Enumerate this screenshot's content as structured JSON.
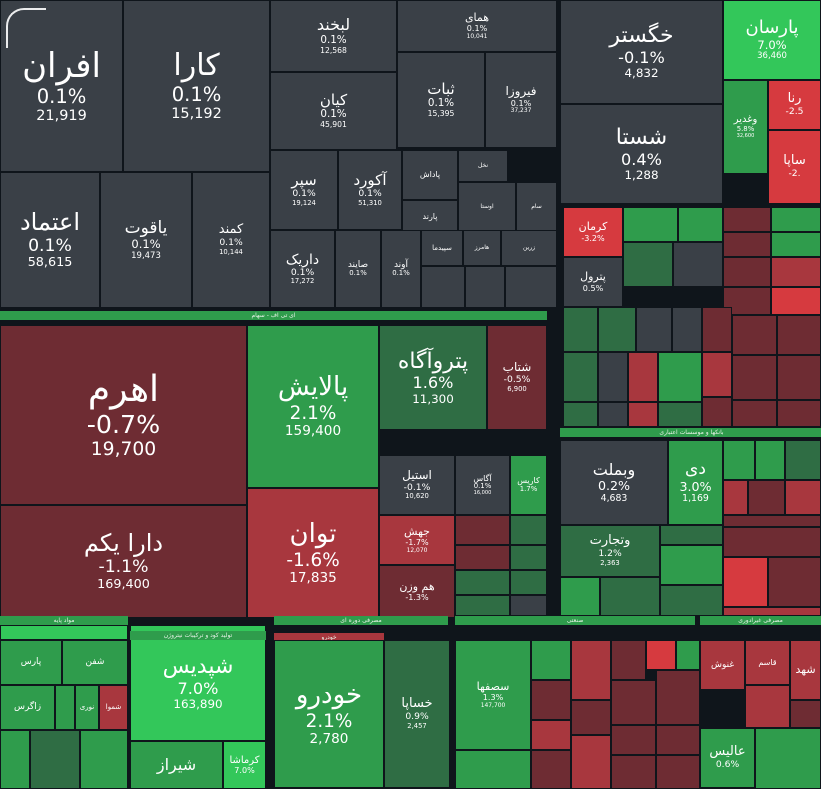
{
  "colors": {
    "neutral": "#3a4047",
    "dark_red": "#6e2c33",
    "red": "#a8373e",
    "bright_red": "#d63a3f",
    "dark_green": "#2f6d44",
    "green": "#2f9c4c",
    "bright_green": "#33c75a",
    "background": "#0f151b"
  },
  "sectors": [
    {
      "label": "ای تی اف - سهام"
    },
    {
      "label": "بانکها و موسسات اعتباری"
    },
    {
      "label": "مواد پایه"
    },
    {
      "label": "تولید کود و ترکیبات نیتروژن"
    },
    {
      "label": "مصرفی دوره ای"
    },
    {
      "label": "خودرو"
    },
    {
      "label": "صنعتی"
    },
    {
      "label": "مصرفی غیرادوری"
    }
  ],
  "chart_data": {
    "type": "treemap",
    "tiles": [
      {
        "name": "افران",
        "change": "0.1%",
        "value": "21,919",
        "color": "neutral"
      },
      {
        "name": "کارا",
        "change": "0.1%",
        "value": "15,192",
        "color": "neutral"
      },
      {
        "name": "لبخند",
        "change": "0.1%",
        "value": "12,568",
        "color": "neutral"
      },
      {
        "name": "همای",
        "change": "0.1%",
        "value": "10,041",
        "color": "neutral"
      },
      {
        "name": "کیان",
        "change": "0.1%",
        "value": "45,901",
        "color": "neutral"
      },
      {
        "name": "ثبات",
        "change": "0.1%",
        "value": "15,395",
        "color": "neutral"
      },
      {
        "name": "فیروزا",
        "change": "0.1%",
        "value": "37,237",
        "color": "neutral"
      },
      {
        "name": "اعتماد",
        "change": "0.1%",
        "value": "58,615",
        "color": "neutral"
      },
      {
        "name": "یاقوت",
        "change": "0.1%",
        "value": "19,473",
        "color": "neutral"
      },
      {
        "name": "کمند",
        "change": "0.1%",
        "value": "10,144",
        "color": "neutral"
      },
      {
        "name": "سپر",
        "change": "0.1%",
        "value": "19,124",
        "color": "neutral"
      },
      {
        "name": "آکورد",
        "change": "0.1%",
        "value": "51,310",
        "color": "neutral"
      },
      {
        "name": "پاداش",
        "change": "",
        "value": "",
        "color": "neutral"
      },
      {
        "name": "نخل",
        "change": "",
        "value": "",
        "color": "neutral"
      },
      {
        "name": "پارند",
        "change": "",
        "value": "",
        "color": "neutral"
      },
      {
        "name": "اوستا",
        "change": "",
        "value": "",
        "color": "neutral"
      },
      {
        "name": "سام",
        "change": "",
        "value": "",
        "color": "neutral"
      },
      {
        "name": "داریک",
        "change": "0.1%",
        "value": "17,272",
        "color": "neutral"
      },
      {
        "name": "صایند",
        "change": "0.1%",
        "value": "",
        "color": "neutral"
      },
      {
        "name": "آوند",
        "change": "0.1%",
        "value": "",
        "color": "neutral"
      },
      {
        "name": "سپیدما",
        "change": "",
        "value": "",
        "color": "neutral"
      },
      {
        "name": "هامرز",
        "change": "",
        "value": "",
        "color": "neutral"
      },
      {
        "name": "زرین",
        "change": "",
        "value": "",
        "color": "neutral"
      },
      {
        "name": "خگستر",
        "change": "-0.1%",
        "value": "4,832",
        "color": "neutral"
      },
      {
        "name": "شستا",
        "change": "0.4%",
        "value": "1,288",
        "color": "neutral"
      },
      {
        "name": "پارسان",
        "change": "7.0%",
        "value": "36,460",
        "color": "bright_green"
      },
      {
        "name": "رنا",
        "change": "-2.5",
        "value": "",
        "color": "bright_red"
      },
      {
        "name": "وغدیر",
        "change": "5.8%",
        "value": "32,600",
        "color": "green"
      },
      {
        "name": "ساپا",
        "change": "-2.",
        "value": "",
        "color": "bright_red"
      },
      {
        "name": "اهرم",
        "change": "-0.7%",
        "value": "19,700",
        "color": "dark_red"
      },
      {
        "name": "دارا یکم",
        "change": "-1.1%",
        "value": "169,400",
        "color": "dark_red"
      },
      {
        "name": "پالایش",
        "change": "2.1%",
        "value": "159,400",
        "color": "green"
      },
      {
        "name": "پتروآگاه",
        "change": "1.6%",
        "value": "11,300",
        "color": "dark_green"
      },
      {
        "name": "شتاب",
        "change": "-0.5%",
        "value": "6,900",
        "color": "dark_red"
      },
      {
        "name": "توان",
        "change": "-1.6%",
        "value": "17,835",
        "color": "red"
      },
      {
        "name": "استیل",
        "change": "-0.1%",
        "value": "10,620",
        "color": "neutral"
      },
      {
        "name": "آگاس",
        "change": "0.1%",
        "value": "16,000",
        "color": "neutral"
      },
      {
        "name": "کاریس",
        "change": "1.7%",
        "value": "",
        "color": "green"
      },
      {
        "name": "جهش",
        "change": "-1.7%",
        "value": "12,070",
        "color": "red"
      },
      {
        "name": "هم وزن",
        "change": "-1.3%",
        "value": "",
        "color": "dark_red"
      },
      {
        "name": "کرمان",
        "change": "-3.2%",
        "value": "",
        "color": "bright_red"
      },
      {
        "name": "پترول",
        "change": "0.5%",
        "value": "",
        "color": "neutral"
      },
      {
        "name": "وبملت",
        "change": "0.2%",
        "value": "4,683",
        "color": "neutral"
      },
      {
        "name": "دی",
        "change": "3.0%",
        "value": "1,169",
        "color": "green"
      },
      {
        "name": "وتجارت",
        "change": "1.2%",
        "value": "2,363",
        "color": "dark_green"
      },
      {
        "name": "شپدیس",
        "change": "7.0%",
        "value": "163,890",
        "color": "bright_green"
      },
      {
        "name": "کرماشا",
        "change": "7.0%",
        "value": "",
        "color": "bright_green"
      },
      {
        "name": "شیراز",
        "change": "",
        "value": "",
        "color": "green"
      },
      {
        "name": "پارس",
        "change": "",
        "value": "",
        "color": "green"
      },
      {
        "name": "شفن",
        "change": "",
        "value": "",
        "color": "green"
      },
      {
        "name": "زاگرس",
        "change": "",
        "value": "",
        "color": "green"
      },
      {
        "name": "نوری",
        "change": "",
        "value": "",
        "color": "green"
      },
      {
        "name": "شموا",
        "change": "",
        "value": "",
        "color": "red"
      },
      {
        "name": "خودرو",
        "change": "2.1%",
        "value": "2,780",
        "color": "green"
      },
      {
        "name": "خساپا",
        "change": "0.9%",
        "value": "2,457",
        "color": "dark_green"
      },
      {
        "name": "سصفها",
        "change": "1.3%",
        "value": "147,700",
        "color": "green"
      },
      {
        "name": "عالیس",
        "change": "0.6%",
        "value": "",
        "color": "green"
      },
      {
        "name": "غنوش",
        "change": "",
        "value": "",
        "color": "red"
      },
      {
        "name": "شهد",
        "change": "",
        "value": "",
        "color": "red"
      },
      {
        "name": "قاسم",
        "change": "",
        "value": "",
        "color": "red"
      }
    ]
  }
}
